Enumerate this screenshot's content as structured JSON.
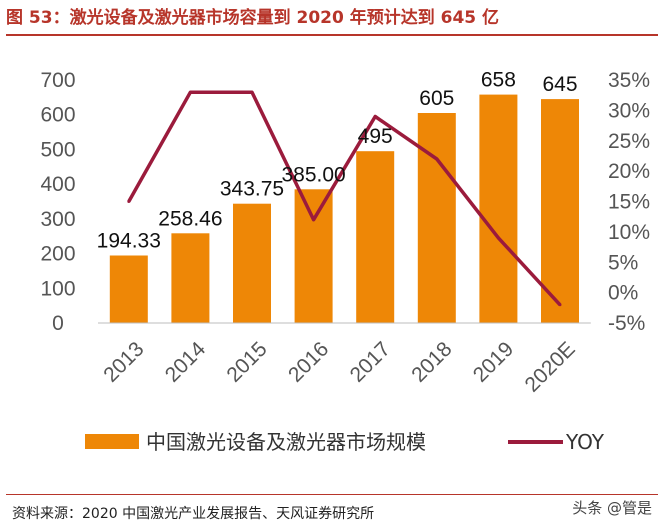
{
  "header": {
    "title": "图 53：激光设备及激光器市场容量到 2020 年预计达到 645 亿"
  },
  "footer": {
    "source": "资料来源：2020 中国激光产业发展报告、天风证券研究所",
    "watermark": "头条 @管是"
  },
  "chart_data": {
    "type": "bar",
    "categories": [
      "2013",
      "2014",
      "2015",
      "2016",
      "2017",
      "2018",
      "2019",
      "2020E"
    ],
    "series": [
      {
        "name": "中国激光设备及激光器市场规模",
        "type": "bar",
        "axis": "left",
        "color": "#ee8706",
        "values": [
          194.33,
          258.46,
          343.75,
          385.0,
          495,
          605,
          658,
          645
        ],
        "labels": [
          "194.33",
          "258.46",
          "343.75",
          "385.00",
          "495",
          "605",
          "658",
          "645"
        ]
      },
      {
        "name": "YOY",
        "type": "line",
        "axis": "right",
        "color": "#9b1b3c",
        "values": [
          15,
          33,
          33,
          12,
          29,
          22,
          9,
          -2
        ]
      }
    ],
    "y_left": {
      "lim": [
        0,
        700
      ],
      "ticks": [
        "0",
        "100",
        "200",
        "300",
        "400",
        "500",
        "600",
        "700"
      ]
    },
    "y_right": {
      "lim": [
        -5,
        35
      ],
      "ticks": [
        "-5%",
        "0%",
        "5%",
        "10%",
        "15%",
        "20%",
        "25%",
        "30%",
        "35%"
      ]
    },
    "grid": false,
    "legend_position": "bottom"
  }
}
